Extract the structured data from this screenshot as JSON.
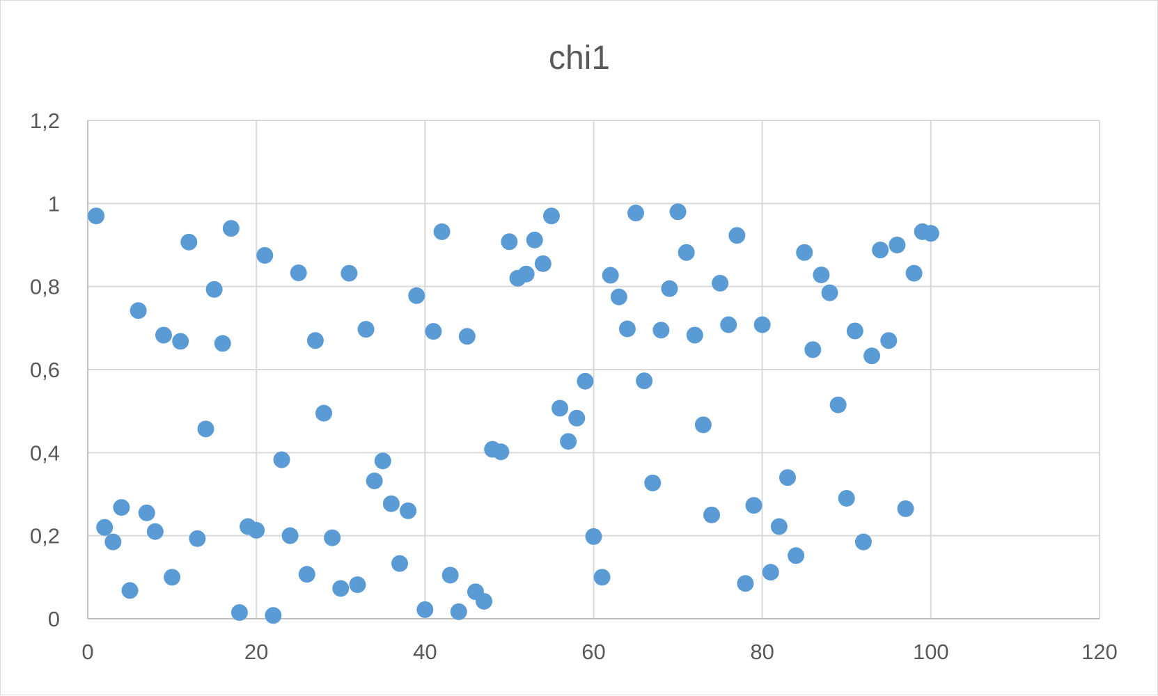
{
  "chart_data": {
    "type": "scatter",
    "title": "chi1",
    "xlabel": "",
    "ylabel": "",
    "xlim": [
      0,
      120
    ],
    "ylim": [
      0,
      1.2
    ],
    "x_ticks": [
      0,
      20,
      40,
      60,
      80,
      100,
      120
    ],
    "y_ticks": [
      0,
      0.2,
      0.4,
      0.6,
      0.8,
      1.0,
      1.2
    ],
    "x_tick_labels": [
      "0",
      "20",
      "40",
      "60",
      "80",
      "100",
      "120"
    ],
    "y_tick_labels": [
      "0",
      "0,2",
      "0,4",
      "0,6",
      "0,8",
      "1",
      "1,2"
    ],
    "grid": true,
    "legend": "none",
    "marker_color": "#5b9bd5",
    "series": [
      {
        "points": [
          [
            1,
            0.97
          ],
          [
            2,
            0.22
          ],
          [
            3,
            0.185
          ],
          [
            4,
            0.268
          ],
          [
            5,
            0.068
          ],
          [
            6,
            0.742
          ],
          [
            7,
            0.255
          ],
          [
            8,
            0.21
          ],
          [
            9,
            0.683
          ],
          [
            10,
            0.1
          ],
          [
            11,
            0.668
          ],
          [
            12,
            0.907
          ],
          [
            13,
            0.193
          ],
          [
            14,
            0.457
          ],
          [
            15,
            0.793
          ],
          [
            16,
            0.663
          ],
          [
            17,
            0.94
          ],
          [
            18,
            0.015
          ],
          [
            19,
            0.222
          ],
          [
            20,
            0.213
          ],
          [
            21,
            0.875
          ],
          [
            22,
            0.008
          ],
          [
            23,
            0.383
          ],
          [
            24,
            0.2
          ],
          [
            25,
            0.833
          ],
          [
            26,
            0.107
          ],
          [
            27,
            0.67
          ],
          [
            28,
            0.495
          ],
          [
            29,
            0.195
          ],
          [
            30,
            0.073
          ],
          [
            31,
            0.832
          ],
          [
            32,
            0.082
          ],
          [
            33,
            0.697
          ],
          [
            34,
            0.332
          ],
          [
            35,
            0.38
          ],
          [
            36,
            0.277
          ],
          [
            37,
            0.133
          ],
          [
            38,
            0.26
          ],
          [
            39,
            0.778
          ],
          [
            40,
            0.022
          ],
          [
            41,
            0.692
          ],
          [
            42,
            0.932
          ],
          [
            43,
            0.105
          ],
          [
            44,
            0.017
          ],
          [
            45,
            0.68
          ],
          [
            46,
            0.065
          ],
          [
            47,
            0.042
          ],
          [
            48,
            0.408
          ],
          [
            49,
            0.402
          ],
          [
            50,
            0.908
          ],
          [
            51,
            0.82
          ],
          [
            52,
            0.83
          ],
          [
            53,
            0.912
          ],
          [
            54,
            0.855
          ],
          [
            55,
            0.97
          ],
          [
            56,
            0.507
          ],
          [
            57,
            0.427
          ],
          [
            58,
            0.483
          ],
          [
            59,
            0.572
          ],
          [
            60,
            0.198
          ],
          [
            61,
            0.1
          ],
          [
            62,
            0.827
          ],
          [
            63,
            0.775
          ],
          [
            64,
            0.698
          ],
          [
            65,
            0.977
          ],
          [
            66,
            0.573
          ],
          [
            67,
            0.327
          ],
          [
            68,
            0.695
          ],
          [
            69,
            0.795
          ],
          [
            70,
            0.98
          ],
          [
            71,
            0.882
          ],
          [
            72,
            0.683
          ],
          [
            73,
            0.467
          ],
          [
            74,
            0.25
          ],
          [
            75,
            0.808
          ],
          [
            76,
            0.708
          ],
          [
            77,
            0.923
          ],
          [
            78,
            0.085
          ],
          [
            79,
            0.273
          ],
          [
            80,
            0.708
          ],
          [
            81,
            0.112
          ],
          [
            82,
            0.222
          ],
          [
            83,
            0.34
          ],
          [
            84,
            0.152
          ],
          [
            85,
            0.882
          ],
          [
            86,
            0.648
          ],
          [
            87,
            0.828
          ],
          [
            88,
            0.785
          ],
          [
            89,
            0.515
          ],
          [
            90,
            0.29
          ],
          [
            91,
            0.693
          ],
          [
            92,
            0.185
          ],
          [
            93,
            0.633
          ],
          [
            94,
            0.888
          ],
          [
            95,
            0.67
          ],
          [
            96,
            0.9
          ],
          [
            97,
            0.265
          ],
          [
            98,
            0.832
          ],
          [
            99,
            0.932
          ],
          [
            100,
            0.928
          ]
        ]
      }
    ]
  }
}
